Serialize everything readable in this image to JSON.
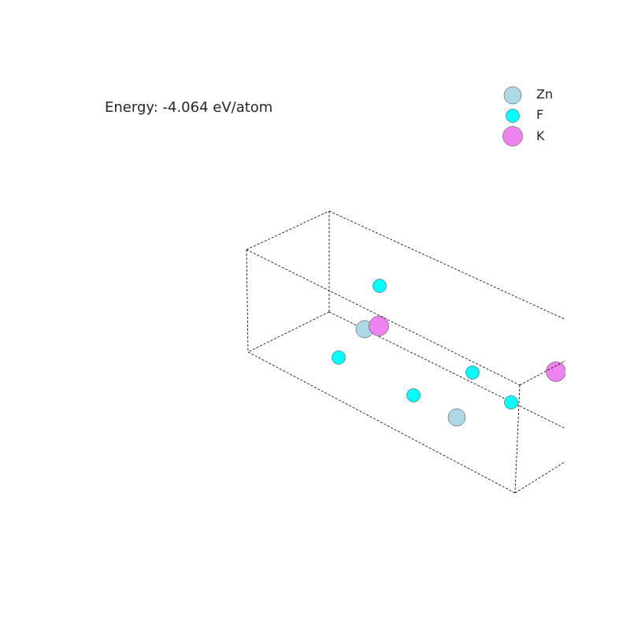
{
  "energy": {
    "prefix": "Energy: ",
    "value": -4.064,
    "unit": " eV/atom",
    "text": "Energy: -4.064 eV/atom"
  },
  "legend": {
    "items": [
      {
        "element": "Zn",
        "color": "#add8e6"
      },
      {
        "element": "F",
        "color": "#00ffff"
      },
      {
        "element": "K",
        "color": "#ee82ee"
      }
    ]
  },
  "species_colors": {
    "Zn": "#add8e6",
    "F": "#00ffff",
    "K": "#ee82ee"
  }
}
